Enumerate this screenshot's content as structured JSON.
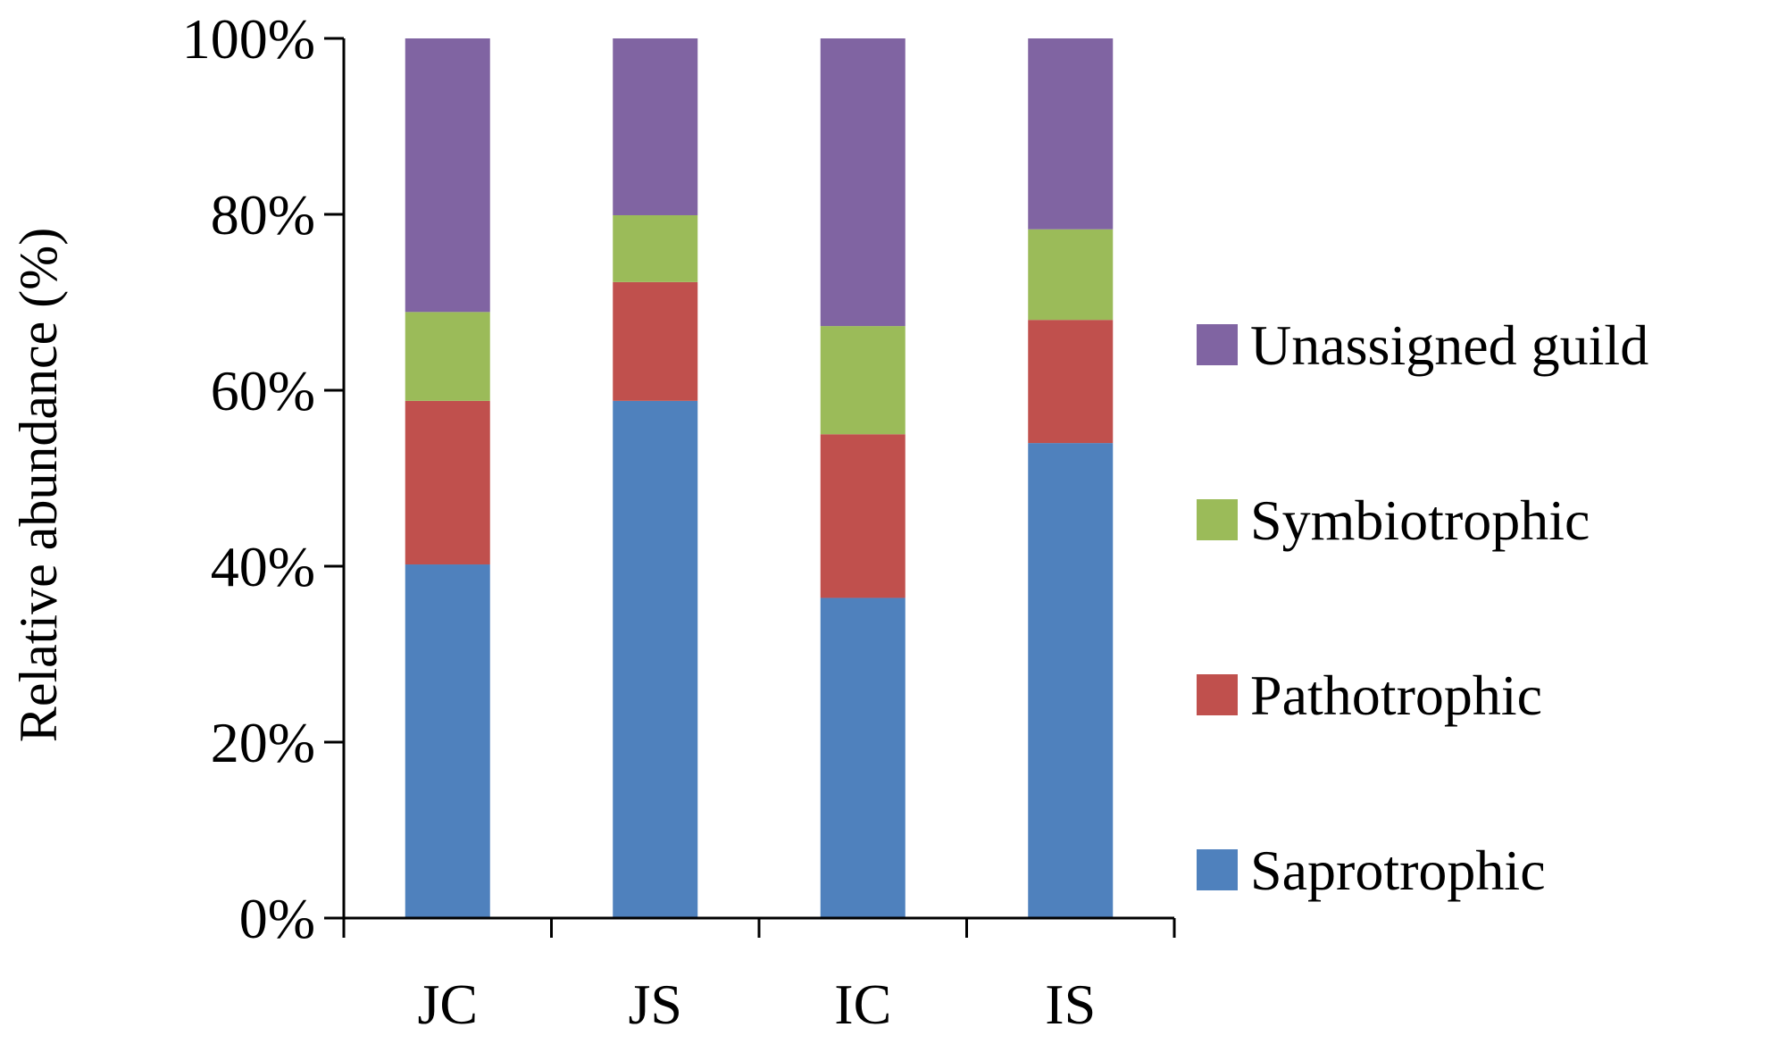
{
  "chart_data": {
    "type": "bar",
    "stacked": true,
    "categories": [
      "JC",
      "JS",
      "IC",
      "IS"
    ],
    "series": [
      {
        "name": "Saprotrophic",
        "color": "#4f81bd",
        "values": [
          40.2,
          58.8,
          36.4,
          54.0
        ]
      },
      {
        "name": "Pathotrophic",
        "color": "#c0504d",
        "values": [
          18.6,
          13.5,
          18.6,
          14.0
        ]
      },
      {
        "name": "Symbiotrophic",
        "color": "#9bbb59",
        "values": [
          10.1,
          7.6,
          12.3,
          10.3
        ]
      },
      {
        "name": "Unassigned guild",
        "color": "#8064a2",
        "values": [
          31.1,
          20.1,
          32.7,
          21.7
        ]
      }
    ],
    "ylabel": "Relative abundance (%)",
    "xlabel": "",
    "ylim": [
      0,
      100
    ],
    "yticks": [
      "0%",
      "20%",
      "40%",
      "60%",
      "80%",
      "100%"
    ],
    "grid": false,
    "legend_position": "right",
    "legend_order": [
      "Unassigned guild",
      "Symbiotrophic",
      "Pathotrophic",
      "Saprotrophic"
    ]
  }
}
